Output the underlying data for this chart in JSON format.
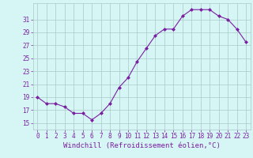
{
  "x": [
    0,
    1,
    2,
    3,
    4,
    5,
    6,
    7,
    8,
    9,
    10,
    11,
    12,
    13,
    14,
    15,
    16,
    17,
    18,
    19,
    20,
    21,
    22,
    23
  ],
  "y": [
    19,
    18,
    18,
    17.5,
    16.5,
    16.5,
    15.5,
    16.5,
    18,
    20.5,
    22,
    24.5,
    26.5,
    28.5,
    29.5,
    29.5,
    31.5,
    32.5,
    32.5,
    32.5,
    31.5,
    31,
    29.5,
    27.5
  ],
  "line_color": "#7b1fa2",
  "marker": "D",
  "markersize": 2,
  "linewidth": 0.8,
  "bg_color": "#d6f5f5",
  "grid_color": "#b0d0d0",
  "xlabel": "Windchill (Refroidissement éolien,°C)",
  "xlabel_color": "#7b1fa2",
  "xlabel_fontsize": 6.5,
  "tick_color": "#7b1fa2",
  "tick_fontsize": 5.5,
  "ylim": [
    14.0,
    33.5
  ],
  "xlim": [
    -0.5,
    23.5
  ],
  "yticks": [
    15,
    17,
    19,
    21,
    23,
    25,
    27,
    29,
    31
  ],
  "xticks": [
    0,
    1,
    2,
    3,
    4,
    5,
    6,
    7,
    8,
    9,
    10,
    11,
    12,
    13,
    14,
    15,
    16,
    17,
    18,
    19,
    20,
    21,
    22,
    23
  ]
}
